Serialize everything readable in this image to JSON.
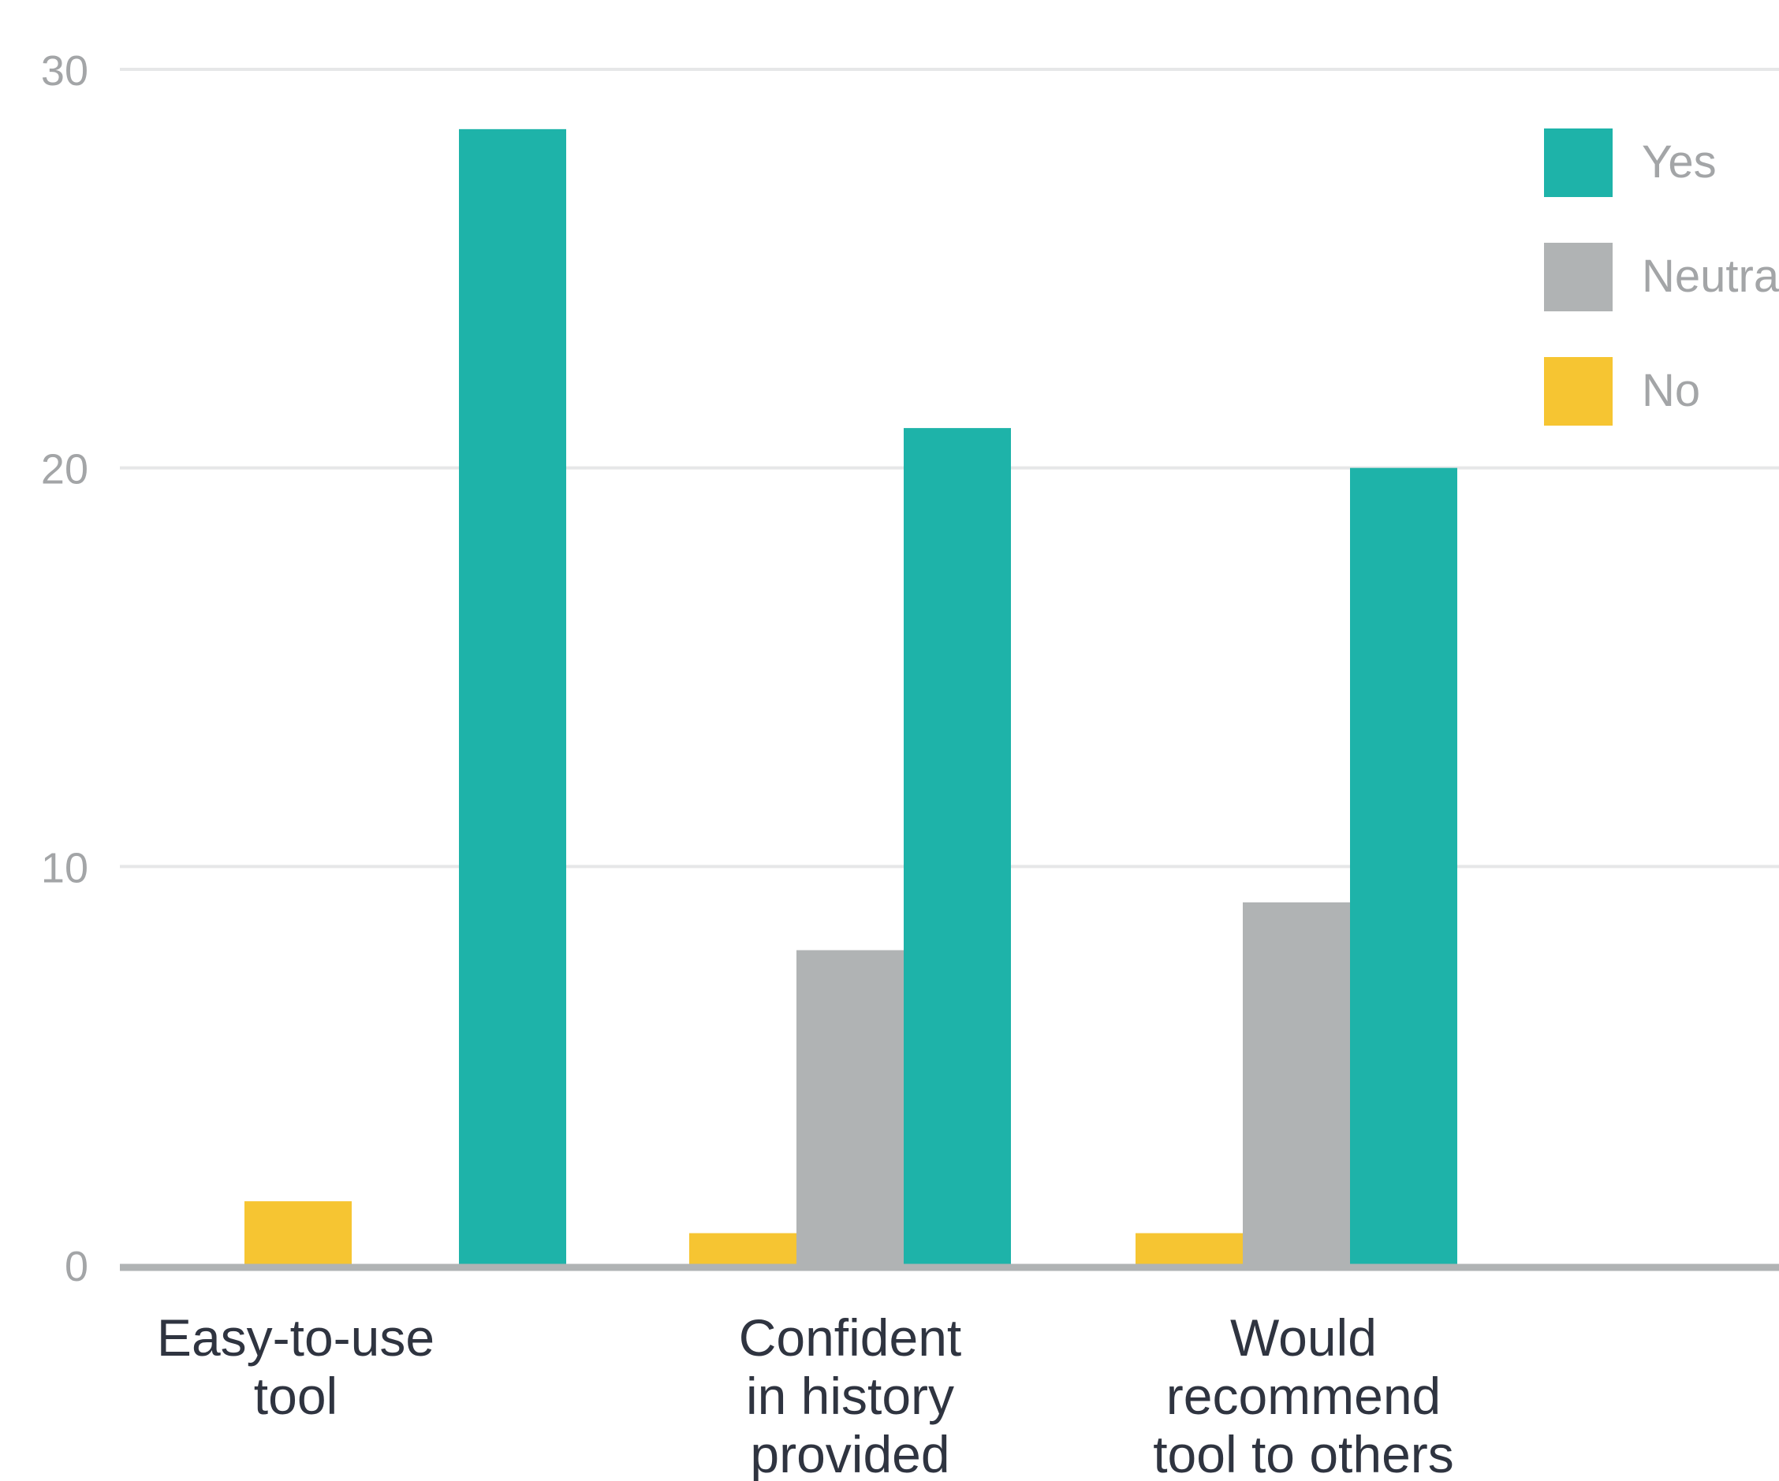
{
  "chart_data": {
    "type": "bar",
    "categories": [
      [
        "Easy-to-use",
        "tool"
      ],
      [
        "Confident",
        "in history",
        "provided"
      ],
      [
        "Would",
        "recommend",
        "tool to others"
      ]
    ],
    "series": [
      {
        "name": "No",
        "color": "#f6c532",
        "values": [
          1.6,
          0.8,
          0.8
        ]
      },
      {
        "name": "Neutral",
        "color": "#b0b3b4",
        "values": [
          0,
          7.9,
          9.1
        ]
      },
      {
        "name": "Yes",
        "color": "#1eb3a9",
        "values": [
          28.5,
          21,
          20
        ]
      }
    ],
    "legend": {
      "position": "top-right",
      "order": [
        "Yes",
        "Neutral",
        "No"
      ],
      "labels": [
        "Yes",
        "Neutral",
        "No"
      ]
    },
    "y_ticks": [
      "0",
      "10",
      "20",
      "30"
    ],
    "ylim": [
      0,
      30
    ],
    "grid": true
  }
}
